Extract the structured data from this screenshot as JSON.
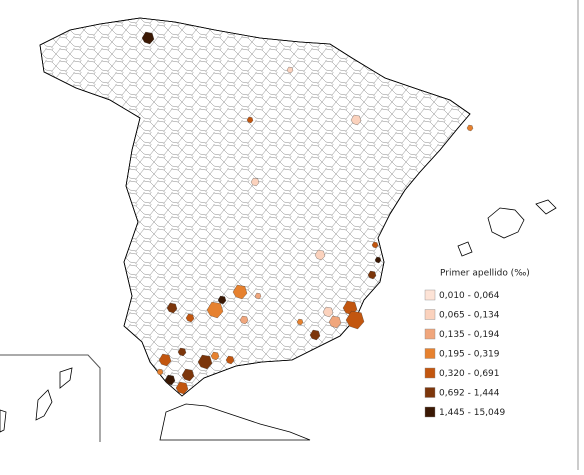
{
  "legend": {
    "title": "Primer apellido (‰)",
    "items": [
      {
        "label": "0,010 - 0,064",
        "color": "#fde3d6"
      },
      {
        "label": "0,065 - 0,134",
        "color": "#fbd2bd"
      },
      {
        "label": "0,135 - 0,194",
        "color": "#f0a67c"
      },
      {
        "label": "0,195 - 0,319",
        "color": "#e6812f"
      },
      {
        "label": "0,320 - 0,691",
        "color": "#c2560f"
      },
      {
        "label": "0,692 - 1,444",
        "color": "#7c360b"
      },
      {
        "label": "1,445 - 15,049",
        "color": "#3a1804"
      }
    ]
  }
}
